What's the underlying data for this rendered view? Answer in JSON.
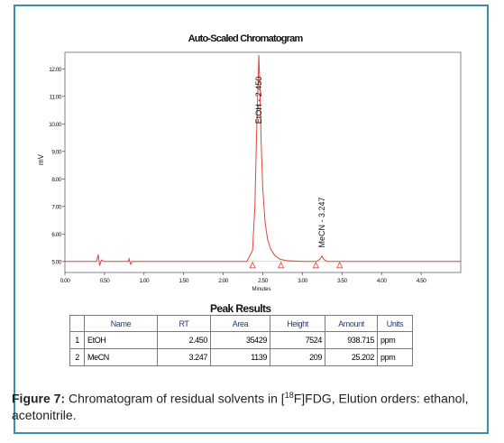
{
  "chart_data": {
    "type": "line",
    "title": "Auto-Scaled Chromatogram",
    "xlabel": "Minutes",
    "ylabel": "mV",
    "xlim": [
      0.0,
      5.0
    ],
    "ylim": [
      4.6,
      12.6
    ],
    "x_ticks": [
      "0.00",
      "0.50",
      "1.00",
      "1.50",
      "2.00",
      "2.50",
      "3.00",
      "3.50",
      "4.00",
      "4.50"
    ],
    "x_tick_values": [
      0.0,
      0.5,
      1.0,
      1.5,
      2.0,
      2.5,
      3.0,
      3.5,
      4.0,
      4.5
    ],
    "y_ticks": [
      "5.00",
      "6.00",
      "7.00",
      "8.00",
      "9.00",
      "10.00",
      "11.00",
      "12.00"
    ],
    "y_tick_values": [
      5,
      6,
      7,
      8,
      9,
      10,
      11,
      12
    ],
    "baseline": 5.0,
    "line_color": "#e0453a",
    "series": [
      {
        "x": [
          0,
          0.4,
          0.42,
          0.44,
          0.46,
          0.5,
          0.8,
          0.81,
          0.83,
          0.85,
          1.0,
          2.0,
          2.3,
          2.37,
          2.4,
          2.42,
          2.44,
          2.45,
          2.46,
          2.48,
          2.5,
          2.53,
          2.56,
          2.6,
          2.65,
          2.72,
          2.8,
          3.0,
          3.18,
          3.22,
          3.247,
          3.27,
          3.31,
          3.5,
          4.0,
          5.0
        ],
        "y": [
          5.0,
          5.0,
          5.25,
          4.85,
          5.05,
          5.0,
          5.0,
          5.1,
          4.9,
          5.0,
          5.0,
          5.0,
          5.0,
          5.4,
          7.0,
          9.5,
          11.5,
          12.5,
          11.6,
          9.3,
          7.6,
          6.4,
          5.8,
          5.45,
          5.22,
          5.08,
          5.03,
          5.0,
          5.0,
          5.08,
          5.2,
          5.08,
          5.0,
          5.0,
          5.0,
          5.0
        ]
      }
    ],
    "peak_labels": [
      {
        "text": "EtOH - 2.450",
        "x": 2.45,
        "y": 10.0
      },
      {
        "text": "MeCN - 3.247",
        "x": 3.247,
        "y": 5.5
      }
    ],
    "peak_markers": [
      2.37,
      2.73,
      3.17,
      3.47
    ],
    "peak_results": {
      "title": "Peak Results",
      "headers": [
        "Name",
        "RT",
        "Area",
        "Height",
        "Amount",
        "Units"
      ],
      "rows": [
        {
          "idx": "1",
          "name": "EtOH",
          "rt": "2.450",
          "area": "35429",
          "height": "7524",
          "amount": "938.715",
          "units": "ppm"
        },
        {
          "idx": "2",
          "name": "MeCN",
          "rt": "3.247",
          "area": "1139",
          "height": "209",
          "amount": "25.202",
          "units": "ppm"
        }
      ]
    }
  },
  "caption": {
    "label": "Figure 7:",
    "text_before": " Chromatogram of residual solvents in [",
    "sup": "18",
    "text_after": "F]FDG, Elution orders: ethanol, acetonitrile."
  }
}
